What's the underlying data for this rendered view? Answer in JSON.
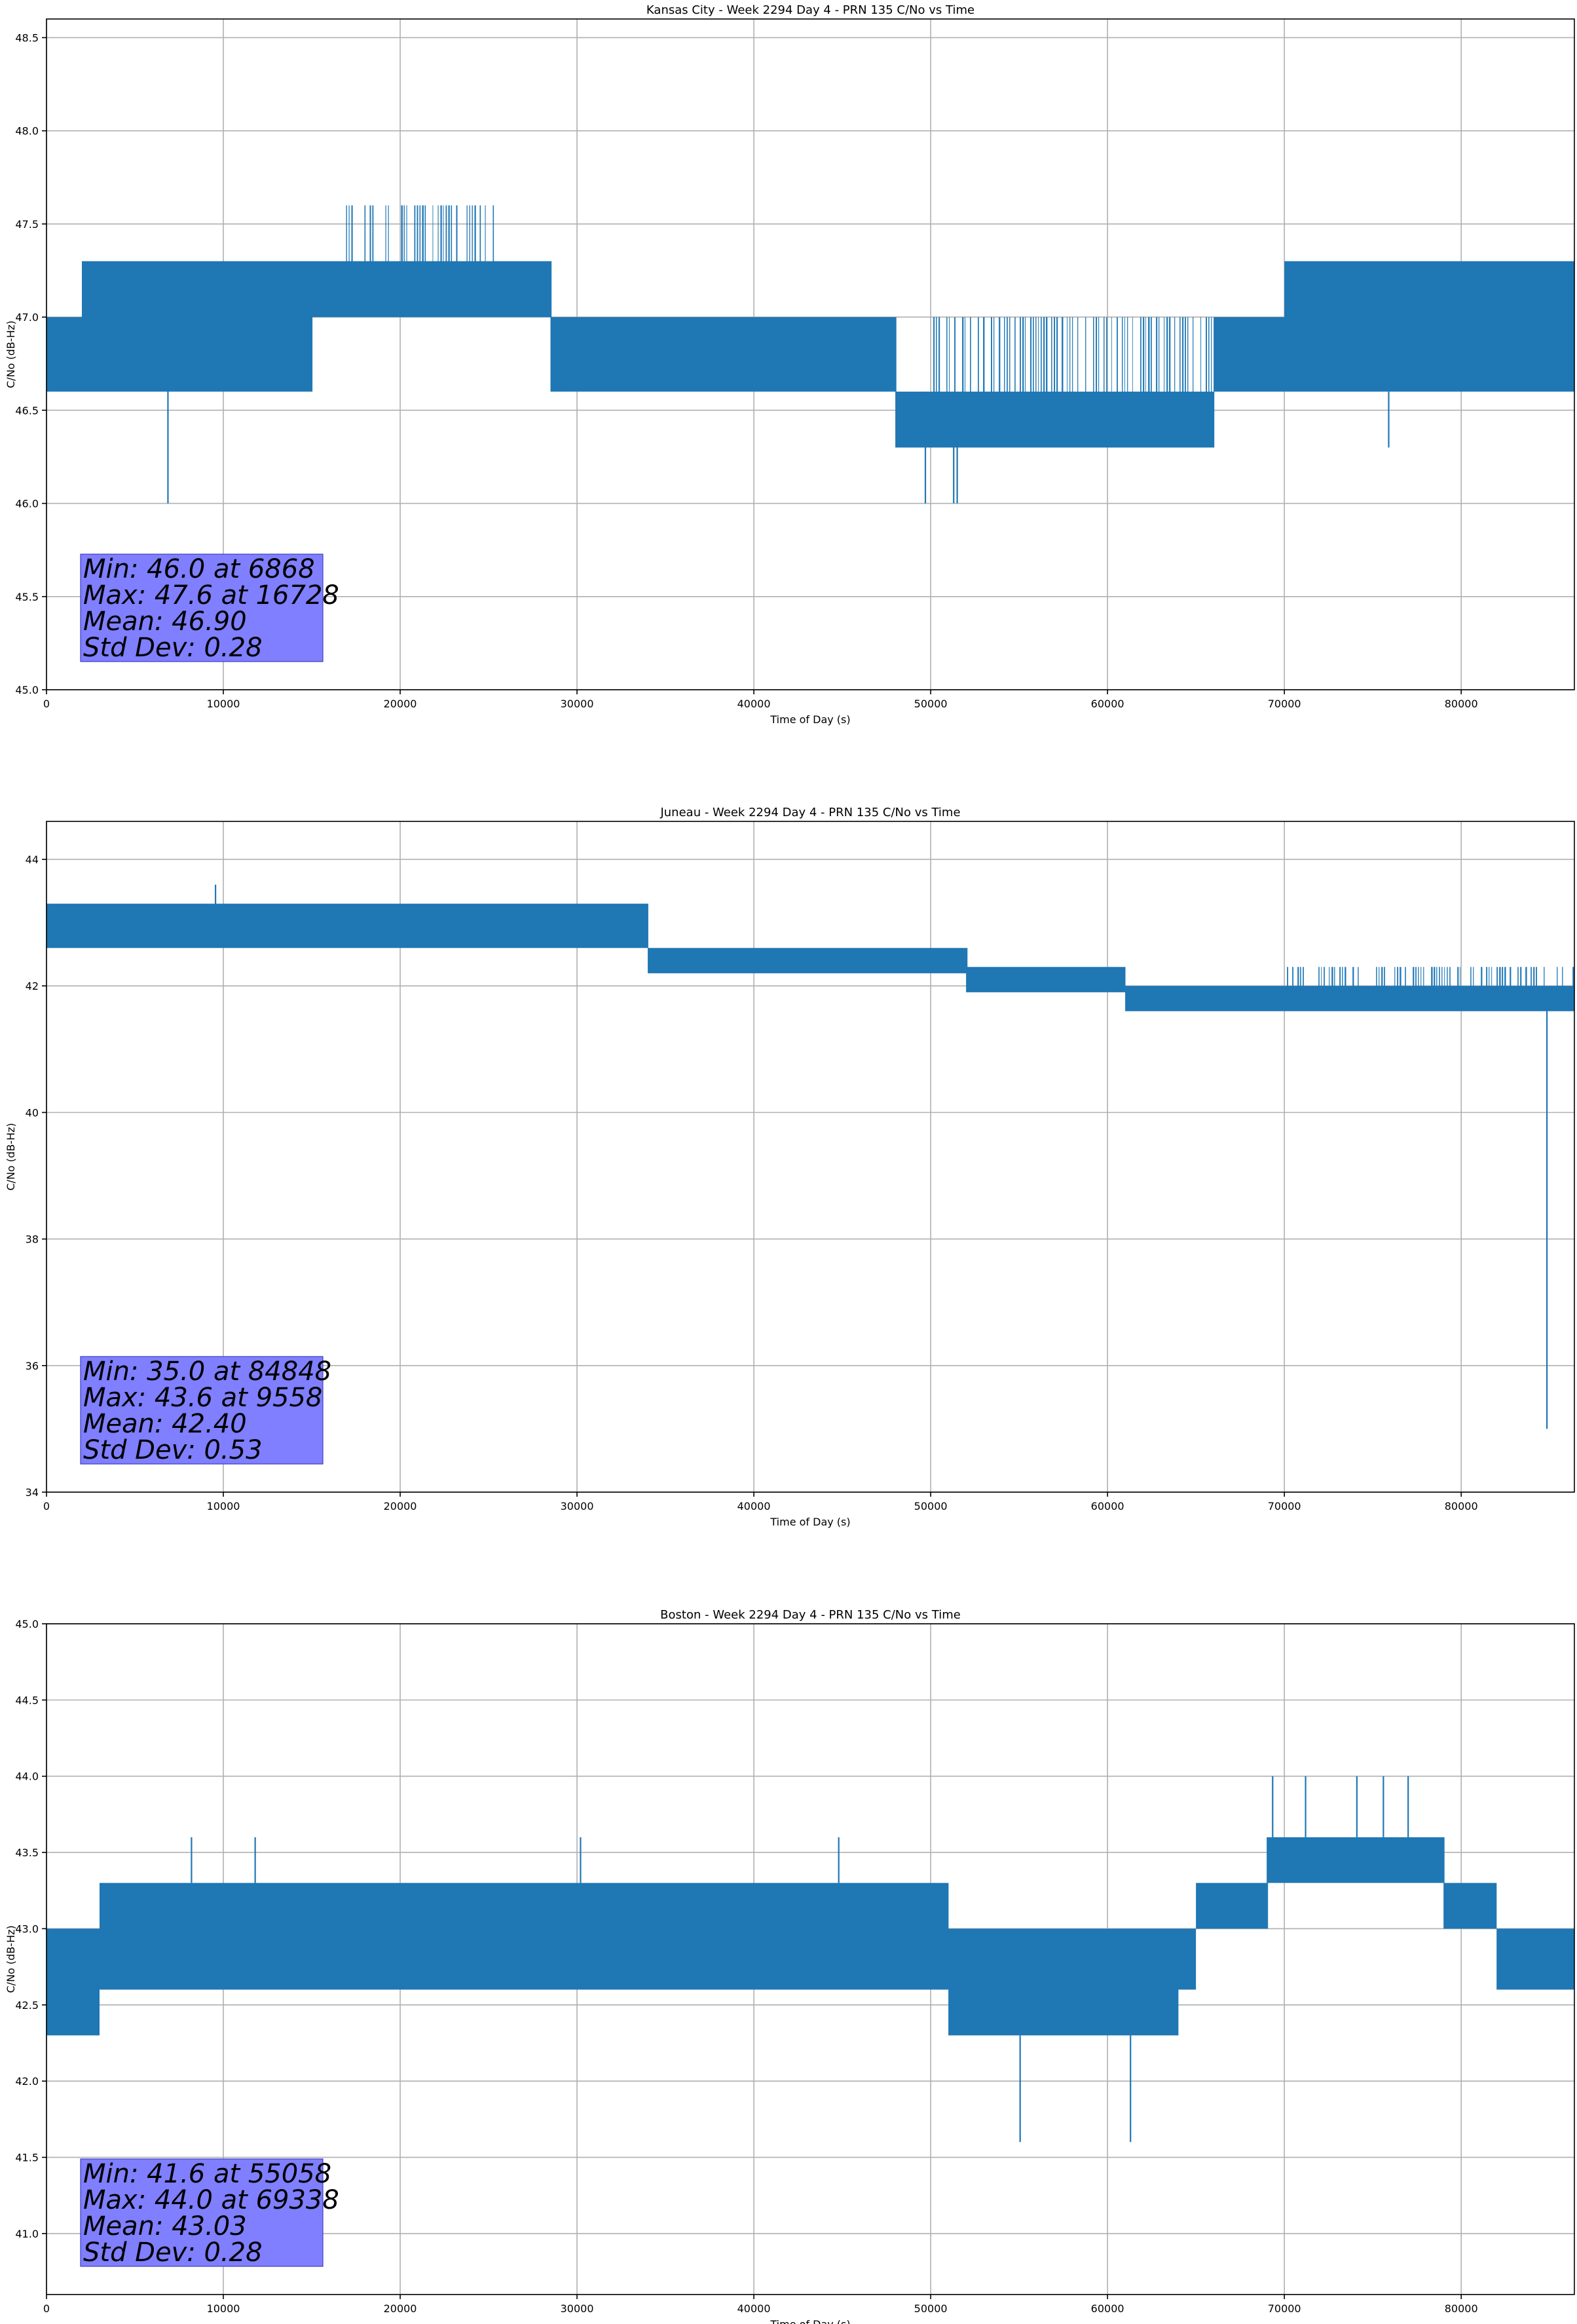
{
  "chart_data": [
    {
      "type": "line",
      "title": "Kansas City - Week 2294 Day 4 - PRN 135 C/No vs Time",
      "xlabel": "Time of Day (s)",
      "ylabel": "C/No (dB-Hz)",
      "xlim": [
        0,
        86400
      ],
      "ylim": [
        45.0,
        48.6
      ],
      "xticks": [
        0,
        10000,
        20000,
        30000,
        40000,
        50000,
        60000,
        70000,
        80000
      ],
      "yticks": [
        45.0,
        45.5,
        46.0,
        46.5,
        47.0,
        47.5,
        48.0,
        48.5
      ],
      "ytick_decimals": 1,
      "grid": true,
      "color": "#1f77b4",
      "series": [
        {
          "bands": [
            {
              "x": [
                0,
                2800
              ],
              "range": [
                46.6,
                47.0
              ]
            },
            {
              "x": [
                2000,
                15000
              ],
              "range": [
                46.6,
                47.3
              ]
            },
            {
              "x": [
                15000,
                28500
              ],
              "range": [
                47.0,
                47.3
              ]
            },
            {
              "x": [
                16500,
                25500
              ],
              "range": [
                47.0,
                47.6
              ],
              "sparse": true
            },
            {
              "x": [
                28500,
                48000
              ],
              "range": [
                46.6,
                47.0
              ]
            },
            {
              "x": [
                48000,
                66000
              ],
              "range": [
                46.3,
                46.6
              ]
            },
            {
              "x": [
                50000,
                66000
              ],
              "range": [
                46.6,
                47.0
              ],
              "sparse": true
            },
            {
              "x": [
                66000,
                70000
              ],
              "range": [
                46.6,
                47.0
              ]
            },
            {
              "x": [
                70000,
                86400
              ],
              "range": [
                46.6,
                47.3
              ]
            }
          ],
          "spikes": [
            {
              "x": 6868,
              "range": [
                46.0,
                47.0
              ]
            },
            {
              "x": 49700,
              "range": [
                46.0,
                46.6
              ]
            },
            {
              "x": 51300,
              "range": [
                46.0,
                46.6
              ]
            },
            {
              "x": 51500,
              "range": [
                46.0,
                46.6
              ]
            },
            {
              "x": 75900,
              "range": [
                46.3,
                46.6
              ]
            }
          ]
        }
      ],
      "stats": [
        "Min: 46.0 at 6868",
        "Max: 47.6 at 16728",
        "Mean: 46.90",
        "Std Dev: 0.28"
      ]
    },
    {
      "type": "line",
      "title": "Juneau - Week 2294 Day 4 - PRN 135 C/No vs Time",
      "xlabel": "Time of Day (s)",
      "ylabel": "C/No (dB-Hz)",
      "xlim": [
        0,
        86400
      ],
      "ylim": [
        34,
        44.6
      ],
      "xticks": [
        0,
        10000,
        20000,
        30000,
        40000,
        50000,
        60000,
        70000,
        80000
      ],
      "yticks": [
        34,
        36,
        38,
        40,
        42,
        44
      ],
      "ytick_decimals": 0,
      "grid": true,
      "color": "#1f77b4",
      "series": [
        {
          "bands": [
            {
              "x": [
                0,
                34000
              ],
              "range": [
                42.6,
                43.3
              ]
            },
            {
              "x": [
                28000,
                34000
              ],
              "range": [
                42.6,
                43.0
              ]
            },
            {
              "x": [
                34000,
                52000
              ],
              "range": [
                42.2,
                42.6
              ]
            },
            {
              "x": [
                52000,
                61000
              ],
              "range": [
                41.9,
                42.3
              ]
            },
            {
              "x": [
                61000,
                86400
              ],
              "range": [
                41.6,
                42.0
              ]
            },
            {
              "x": [
                70000,
                86400
              ],
              "range": [
                41.6,
                42.3
              ],
              "sparse": true
            }
          ],
          "spikes": [
            {
              "x": 9558,
              "range": [
                43.0,
                43.6
              ]
            },
            {
              "x": 84848,
              "range": [
                35.0,
                41.9
              ]
            }
          ]
        }
      ],
      "stats": [
        "Min: 35.0 at 84848",
        "Max: 43.6 at 9558",
        "Mean: 42.40",
        "Std Dev: 0.53"
      ]
    },
    {
      "type": "line",
      "title": "Boston - Week 2294 Day 4 - PRN 135 C/No vs Time",
      "xlabel": "Time of Day (s)",
      "ylabel": "C/No (dB-Hz)",
      "xlim": [
        0,
        86400
      ],
      "ylim": [
        40.6,
        45.0
      ],
      "xticks": [
        0,
        10000,
        20000,
        30000,
        40000,
        50000,
        60000,
        70000,
        80000
      ],
      "yticks": [
        41.0,
        41.5,
        42.0,
        42.5,
        43.0,
        43.5,
        44.0,
        44.5,
        45.0
      ],
      "ytick_decimals": 1,
      "grid": true,
      "color": "#1f77b4",
      "series": [
        {
          "bands": [
            {
              "x": [
                0,
                3000
              ],
              "range": [
                42.3,
                43.0
              ]
            },
            {
              "x": [
                3000,
                51000
              ],
              "range": [
                42.6,
                43.3
              ]
            },
            {
              "x": [
                10000,
                51000
              ],
              "range": [
                43.0,
                43.3
              ]
            },
            {
              "x": [
                51000,
                64000
              ],
              "range": [
                42.3,
                43.0
              ]
            },
            {
              "x": [
                64000,
                65000
              ],
              "range": [
                42.6,
                43.0
              ]
            },
            {
              "x": [
                65000,
                69000
              ],
              "range": [
                43.0,
                43.3
              ]
            },
            {
              "x": [
                69000,
                79000
              ],
              "range": [
                43.3,
                43.6
              ]
            },
            {
              "x": [
                79000,
                82000
              ],
              "range": [
                43.0,
                43.3
              ]
            },
            {
              "x": [
                82000,
                86400
              ],
              "range": [
                42.6,
                43.0
              ]
            }
          ],
          "spikes": [
            {
              "x": 8200,
              "range": [
                43.3,
                43.6
              ]
            },
            {
              "x": 11800,
              "range": [
                43.3,
                43.6
              ]
            },
            {
              "x": 30200,
              "range": [
                43.3,
                43.6
              ]
            },
            {
              "x": 44800,
              "range": [
                43.3,
                43.6
              ]
            },
            {
              "x": 55058,
              "range": [
                41.6,
                42.3
              ]
            },
            {
              "x": 61300,
              "range": [
                41.6,
                42.3
              ]
            },
            {
              "x": 69338,
              "range": [
                43.6,
                44.0
              ]
            },
            {
              "x": 71200,
              "range": [
                43.6,
                44.0
              ]
            },
            {
              "x": 74100,
              "range": [
                43.6,
                44.0
              ]
            },
            {
              "x": 75600,
              "range": [
                43.6,
                44.0
              ]
            },
            {
              "x": 77000,
              "range": [
                43.6,
                44.0
              ]
            }
          ]
        }
      ],
      "stats": [
        "Min: 41.6 at 55058",
        "Max: 44.0 at 69338",
        "Mean: 43.03",
        "Std Dev: 0.28"
      ]
    }
  ]
}
